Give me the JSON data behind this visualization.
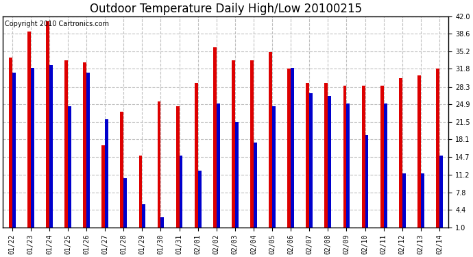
{
  "title": "Outdoor Temperature Daily High/Low 20100215",
  "copyright": "Copyright 2010 Cartronics.com",
  "background_color": "#ffffff",
  "plot_bg_color": "#ffffff",
  "grid_color": "#c0c0c0",
  "bar_width": 0.18,
  "dates": [
    "01/22",
    "01/23",
    "01/24",
    "01/25",
    "01/26",
    "01/27",
    "01/28",
    "01/29",
    "01/30",
    "01/31",
    "02/01",
    "02/02",
    "02/03",
    "02/04",
    "02/05",
    "02/06",
    "02/07",
    "02/08",
    "02/09",
    "02/10",
    "02/11",
    "02/12",
    "02/13",
    "02/14"
  ],
  "highs": [
    34.0,
    39.0,
    41.0,
    33.5,
    33.0,
    17.0,
    23.5,
    15.0,
    25.5,
    24.5,
    29.0,
    36.0,
    33.5,
    33.5,
    35.0,
    31.8,
    29.0,
    29.0,
    28.5,
    28.5,
    28.5,
    30.0,
    30.5,
    31.8
  ],
  "lows": [
    31.0,
    32.0,
    32.5,
    24.5,
    31.0,
    22.0,
    10.5,
    5.5,
    3.0,
    15.0,
    12.0,
    25.0,
    21.5,
    17.5,
    24.5,
    32.0,
    27.0,
    26.5,
    25.0,
    19.0,
    25.0,
    11.5,
    11.5,
    15.0
  ],
  "high_color": "#dd0000",
  "low_color": "#0000cc",
  "ylim_min": 1.0,
  "ylim_max": 42.0,
  "yticks": [
    1.0,
    4.4,
    7.8,
    11.2,
    14.7,
    18.1,
    21.5,
    24.9,
    28.3,
    31.8,
    35.2,
    38.6,
    42.0
  ],
  "title_fontsize": 12,
  "tick_fontsize": 7,
  "copyright_fontsize": 7,
  "figwidth": 6.9,
  "figheight": 3.75,
  "dpi": 100
}
